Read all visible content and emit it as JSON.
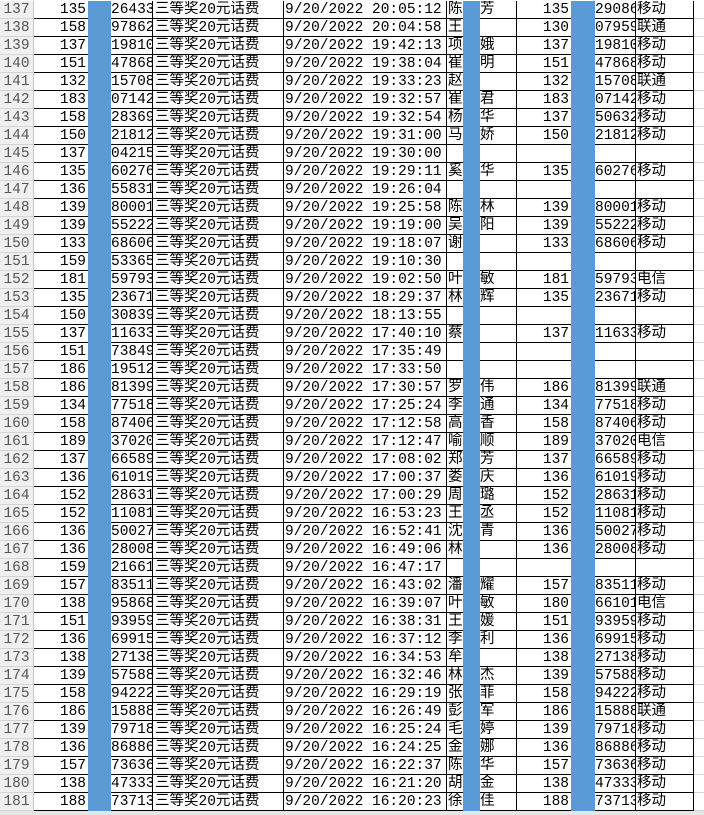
{
  "sheet": {
    "highlight_color": "#5b9bd5",
    "rows": [
      [
        "137",
        "135",
        "26433",
        "三等奖20元话费",
        "9/20/2022 20:05:12",
        "陈",
        "芳",
        "135",
        "29086",
        "移动"
      ],
      [
        "138",
        "158",
        "97862",
        "三等奖20元话费",
        "9/20/2022 20:04:58",
        "王",
        "",
        "130",
        "07959",
        "联通"
      ],
      [
        "139",
        "137",
        "19810",
        "三等奖20元话费",
        "9/20/2022 19:42:13",
        "项",
        "娥",
        "137",
        "19810",
        "移动"
      ],
      [
        "140",
        "151",
        "47868",
        "三等奖20元话费",
        "9/20/2022 19:38:04",
        "崔",
        "明",
        "151",
        "47868",
        "移动"
      ],
      [
        "141",
        "132",
        "15708",
        "三等奖20元话费",
        "9/20/2022 19:33:23",
        "赵",
        "",
        "132",
        "15708",
        "联通"
      ],
      [
        "142",
        "183",
        "07142",
        "三等奖20元话费",
        "9/20/2022 19:32:57",
        "崔",
        "君",
        "183",
        "07142",
        "移动"
      ],
      [
        "143",
        "158",
        "28369",
        "三等奖20元话费",
        "9/20/2022 19:32:54",
        "杨",
        "华",
        "137",
        "50632",
        "移动"
      ],
      [
        "144",
        "150",
        "21812",
        "三等奖20元话费",
        "9/20/2022 19:31:00",
        "马",
        "娇",
        "150",
        "21812",
        "移动"
      ],
      [
        "145",
        "137",
        "04215",
        "三等奖20元话费",
        "9/20/2022 19:30:00",
        "",
        "",
        "",
        "",
        ""
      ],
      [
        "146",
        "135",
        "60276",
        "三等奖20元话费",
        "9/20/2022 19:29:11",
        "奚",
        "华",
        "135",
        "60276",
        "移动"
      ],
      [
        "147",
        "136",
        "55831",
        "三等奖20元话费",
        "9/20/2022 19:26:04",
        "",
        "",
        "",
        "",
        ""
      ],
      [
        "148",
        "139",
        "80001",
        "三等奖20元话费",
        "9/20/2022 19:25:58",
        "陈",
        "林",
        "139",
        "80001",
        "移动"
      ],
      [
        "149",
        "139",
        "55222",
        "三等奖20元话费",
        "9/20/2022 19:19:00",
        "吴",
        "阳",
        "139",
        "55222",
        "移动"
      ],
      [
        "150",
        "133",
        "68606",
        "三等奖20元话费",
        "9/20/2022 19:18:07",
        "谢",
        "",
        "133",
        "68606",
        "移动"
      ],
      [
        "151",
        "159",
        "53365",
        "三等奖20元话费",
        "9/20/2022 19:10:30",
        "",
        "",
        "",
        "",
        ""
      ],
      [
        "152",
        "181",
        "59793",
        "三等奖20元话费",
        "9/20/2022 19:02:50",
        "叶",
        "敏",
        "181",
        "59793",
        "电信"
      ],
      [
        "153",
        "135",
        "23671",
        "三等奖20元话费",
        "9/20/2022 18:29:37",
        "林",
        "辉",
        "135",
        "23671",
        "移动"
      ],
      [
        "154",
        "150",
        "30839",
        "三等奖20元话费",
        "9/20/2022 18:13:55",
        "",
        "",
        "",
        "",
        ""
      ],
      [
        "155",
        "137",
        "11633",
        "三等奖20元话费",
        "9/20/2022 17:40:10",
        "蔡",
        "",
        "137",
        "11633",
        "移动"
      ],
      [
        "156",
        "151",
        "73849",
        "三等奖20元话费",
        "9/20/2022 17:35:49",
        "",
        "",
        "",
        "",
        ""
      ],
      [
        "157",
        "186",
        "19512",
        "三等奖20元话费",
        "9/20/2022 17:33:50",
        "",
        "",
        "",
        "",
        ""
      ],
      [
        "158",
        "186",
        "81399",
        "三等奖20元话费",
        "9/20/2022 17:30:57",
        "罗",
        "伟",
        "186",
        "81399",
        "联通"
      ],
      [
        "159",
        "134",
        "77518",
        "三等奖20元话费",
        "9/20/2022 17:25:24",
        "李",
        "通",
        "134",
        "77518",
        "移动"
      ],
      [
        "160",
        "158",
        "87406",
        "三等奖20元话费",
        "9/20/2022 17:12:58",
        "高",
        "香",
        "158",
        "87406",
        "移动"
      ],
      [
        "161",
        "189",
        "37020",
        "三等奖20元话费",
        "9/20/2022 17:12:47",
        "喻",
        "顺",
        "189",
        "37020",
        "电信"
      ],
      [
        "162",
        "137",
        "66589",
        "三等奖20元话费",
        "9/20/2022 17:08:02",
        "郑",
        "芳",
        "137",
        "66589",
        "移动"
      ],
      [
        "163",
        "136",
        "61019",
        "三等奖20元话费",
        "9/20/2022 17:00:37",
        "娄",
        "庆",
        "136",
        "61019",
        "移动"
      ],
      [
        "164",
        "152",
        "28631",
        "三等奖20元话费",
        "9/20/2022 17:00:29",
        "周",
        "璐",
        "152",
        "28631",
        "移动"
      ],
      [
        "165",
        "152",
        "11081",
        "三等奖20元话费",
        "9/20/2022 16:53:23",
        "王",
        "丞",
        "152",
        "11081",
        "移动"
      ],
      [
        "166",
        "136",
        "50027",
        "三等奖20元话费",
        "9/20/2022 16:52:41",
        "沈",
        "青",
        "136",
        "50027",
        "移动"
      ],
      [
        "167",
        "136",
        "28008",
        "三等奖20元话费",
        "9/20/2022 16:49:06",
        "林",
        "",
        "136",
        "28008",
        "移动"
      ],
      [
        "168",
        "159",
        "21661",
        "三等奖20元话费",
        "9/20/2022 16:47:17",
        "",
        "",
        "",
        "",
        ""
      ],
      [
        "169",
        "157",
        "83511",
        "三等奖20元话费",
        "9/20/2022 16:43:02",
        "潘",
        "耀",
        "157",
        "83511",
        "移动"
      ],
      [
        "170",
        "138",
        "95868",
        "三等奖20元话费",
        "9/20/2022 16:39:07",
        "叶",
        "敏",
        "180",
        "66101",
        "电信"
      ],
      [
        "171",
        "151",
        "93959",
        "三等奖20元话费",
        "9/20/2022 16:38:31",
        "王",
        "媛",
        "151",
        "93959",
        "移动"
      ],
      [
        "172",
        "136",
        "69915",
        "三等奖20元话费",
        "9/20/2022 16:37:12",
        "李",
        "利",
        "136",
        "69915",
        "移动"
      ],
      [
        "173",
        "138",
        "27138",
        "三等奖20元话费",
        "9/20/2022 16:34:53",
        "牟",
        "",
        "138",
        "27138",
        "移动"
      ],
      [
        "174",
        "139",
        "57588",
        "三等奖20元话费",
        "9/20/2022 16:32:46",
        "林",
        "杰",
        "139",
        "57588",
        "移动"
      ],
      [
        "175",
        "158",
        "94222",
        "三等奖20元话费",
        "9/20/2022 16:29:19",
        "张",
        "菲",
        "158",
        "94222",
        "移动"
      ],
      [
        "176",
        "186",
        "15888",
        "三等奖20元话费",
        "9/20/2022 16:26:49",
        "彭",
        "军",
        "186",
        "15888",
        "联通"
      ],
      [
        "177",
        "139",
        "79718",
        "三等奖20元话费",
        "9/20/2022 16:25:24",
        "毛",
        "婷",
        "139",
        "79718",
        "移动"
      ],
      [
        "178",
        "136",
        "86886",
        "三等奖20元话费",
        "9/20/2022 16:24:25",
        "金",
        "娜",
        "136",
        "86886",
        "移动"
      ],
      [
        "179",
        "157",
        "73636",
        "三等奖20元话费",
        "9/20/2022 16:22:37",
        "陈",
        "华",
        "157",
        "73636",
        "移动"
      ],
      [
        "180",
        "138",
        "47333",
        "三等奖20元话费",
        "9/20/2022 16:21:20",
        "胡",
        "金",
        "138",
        "47333",
        "移动"
      ],
      [
        "181",
        "188",
        "73713",
        "三等奖20元话费",
        "9/20/2022 16:20:23",
        "徐",
        "佳",
        "188",
        "73713",
        "移动"
      ]
    ]
  }
}
